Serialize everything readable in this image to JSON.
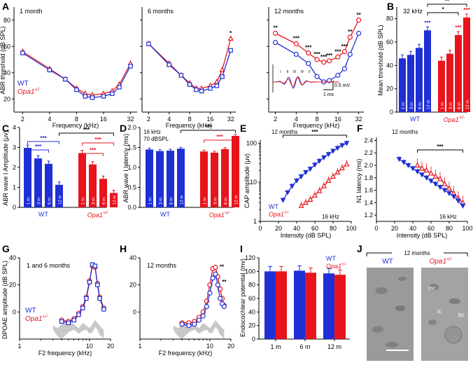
{
  "colors": {
    "wt": "#1f2fd6",
    "opa1": "#e8141c",
    "axis": "#000000",
    "gray": "#c8c8c8",
    "sig": "#000000"
  },
  "legend": {
    "wt": "WT",
    "opa1": "Opa1",
    "opa1_sup": "+/-"
  },
  "chart_data": [
    {
      "panel": "A",
      "type": "line",
      "subtitle": "1 month",
      "ylabel": "ABR threshold (dB SPL)",
      "xlabel": "Frequency (kHz)",
      "x_ticks": [
        "2",
        "4",
        "8",
        "16",
        "32"
      ],
      "y_ticks": [
        "20",
        "40",
        "60",
        "80"
      ],
      "ylim": [
        10,
        90
      ],
      "x": [
        2,
        4,
        6,
        8,
        10,
        12,
        16,
        20,
        24,
        32
      ],
      "series": [
        {
          "name": "WT",
          "values": [
            55,
            42,
            35,
            27,
            22,
            21,
            22,
            24,
            29,
            45
          ]
        },
        {
          "name": "Opa1+/-",
          "values": [
            56,
            43,
            35,
            28,
            24,
            23,
            24,
            26,
            31,
            47
          ]
        }
      ]
    },
    {
      "panel": "A",
      "type": "line",
      "subtitle": "6 months",
      "xlabel": "Frequency (kHz)",
      "x_ticks": [
        "2",
        "4",
        "8",
        "16",
        "32"
      ],
      "ylim": [
        10,
        90
      ],
      "x": [
        2,
        4,
        6,
        8,
        10,
        12,
        16,
        20,
        24,
        32
      ],
      "series": [
        {
          "name": "WT",
          "values": [
            62,
            46,
            38,
            31,
            27,
            26,
            28,
            30,
            37,
            57
          ]
        },
        {
          "name": "Opa1+/-",
          "values": [
            62,
            47,
            38,
            32,
            28,
            28,
            30,
            33,
            42,
            66
          ]
        }
      ],
      "significance": [
        {
          "x": 32,
          "label": "*"
        }
      ]
    },
    {
      "panel": "A",
      "type": "line",
      "subtitle": "12 months",
      "xlabel": "Frequency (kHz)",
      "x_ticks": [
        "2",
        "4",
        "8",
        "16",
        "32"
      ],
      "ylim": [
        10,
        90
      ],
      "x": [
        2,
        4,
        6,
        8,
        10,
        12,
        16,
        20,
        24,
        32
      ],
      "series": [
        {
          "name": "WT",
          "values": [
            63,
            54,
            47,
            37,
            33,
            34,
            38,
            43,
            54,
            70
          ]
        },
        {
          "name": "Opa1+/-",
          "values": [
            70,
            62,
            55,
            50,
            48,
            49,
            52,
            56,
            67,
            80
          ]
        }
      ],
      "significance": [
        {
          "x": 2,
          "label": "**"
        },
        {
          "x": 4,
          "label": "***"
        },
        {
          "x": 6,
          "label": "***"
        },
        {
          "x": 8,
          "label": "***"
        },
        {
          "x": 10,
          "label": "***"
        },
        {
          "x": 12,
          "label": "***"
        },
        {
          "x": 16,
          "label": "***"
        },
        {
          "x": 20,
          "label": "***"
        },
        {
          "x": 24,
          "label": "**"
        },
        {
          "x": 32,
          "label": "**"
        }
      ],
      "inset": {
        "peaks": [
          "I",
          "II",
          "III",
          "IV",
          "V"
        ],
        "scale_v": "0.5 mV",
        "scale_t": "1 ms"
      }
    },
    {
      "panel": "B",
      "type": "bar",
      "subtitle": "32 kHz",
      "ylabel": "Mean threshold (dB SPL)",
      "y_ticks": [
        "0",
        "20",
        "40",
        "60",
        "80"
      ],
      "ylim": [
        0,
        90
      ],
      "groups": [
        "WT",
        "Opa1+/-"
      ],
      "categories": [
        "1 m",
        "3 m",
        "6 m",
        "12 m"
      ],
      "series": [
        {
          "name": "WT",
          "values": [
            46,
            49,
            55,
            70
          ],
          "sig": [
            "",
            "",
            "",
            "***"
          ]
        },
        {
          "name": "Opa1+/-",
          "values": [
            44,
            50,
            66,
            81
          ],
          "sig": [
            "",
            "",
            "***",
            "***"
          ]
        }
      ],
      "brackets": [
        {
          "label": "*"
        },
        {
          "label": "**"
        }
      ]
    },
    {
      "panel": "C",
      "type": "bar",
      "ylabel": "ABR wave I Amplitude (μv)",
      "y_ticks": [
        "0",
        "1",
        "2",
        "3",
        "4"
      ],
      "ylim": [
        0,
        4
      ],
      "groups": [
        "WT",
        "Opa1+/-"
      ],
      "categories": [
        "1 m",
        "3 m",
        "6 m",
        "12 m"
      ],
      "series": [
        {
          "name": "WT",
          "values": [
            2.98,
            2.45,
            2.18,
            1.13
          ]
        },
        {
          "name": "Opa1+/-",
          "values": [
            2.72,
            2.15,
            1.43,
            0.72
          ]
        }
      ],
      "brackets": [
        {
          "label": "***"
        },
        {
          "label": "***"
        },
        {
          "label": "***"
        },
        {
          "label": "***"
        },
        {
          "label": "***"
        }
      ]
    },
    {
      "panel": "D",
      "type": "bar",
      "subtitle": "16 kHz",
      "subtitle2": "70 dBSPL",
      "ylabel": "ABR wave I latency (ms)",
      "y_ticks": [
        "0.0",
        "0.5",
        "1.0",
        "1.5",
        "2.0"
      ],
      "ylim": [
        0,
        2
      ],
      "groups": [
        "WT",
        "Opa1+/-"
      ],
      "categories": [
        "1 m",
        "3 m",
        "6 m",
        "12 m"
      ],
      "series": [
        {
          "name": "WT",
          "values": [
            1.45,
            1.41,
            1.42,
            1.47
          ]
        },
        {
          "name": "Opa1+/-",
          "values": [
            1.4,
            1.37,
            1.46,
            1.79
          ]
        }
      ],
      "brackets": [
        {
          "label": "***"
        },
        {
          "label": "***"
        }
      ]
    },
    {
      "panel": "E",
      "type": "line",
      "subtitle": "12 months",
      "freq": "16 kHz",
      "ylabel": "CAP amplitude (μv)",
      "xlabel": "Intensity (dB SPL)",
      "x_ticks": [
        "0",
        "20",
        "40",
        "60",
        "80",
        "100"
      ],
      "y_ticks": [
        "1",
        "10",
        "100"
      ],
      "yscale": "log",
      "xlim": [
        0,
        100
      ],
      "ylim": [
        1,
        120
      ],
      "series": [
        {
          "name": "WT",
          "x": [
            25,
            30,
            35,
            40,
            45,
            50,
            55,
            60,
            65,
            70,
            75,
            80,
            85,
            90,
            95
          ],
          "values": [
            3.5,
            5.5,
            8,
            11,
            14,
            18,
            22,
            28,
            35,
            43,
            52,
            63,
            75,
            88,
            100
          ]
        },
        {
          "name": "Opa1+/-",
          "x": [
            45,
            50,
            55,
            60,
            65,
            70,
            75,
            80,
            85,
            90,
            95
          ],
          "values": [
            2.5,
            3,
            3.6,
            4.6,
            6,
            8,
            11,
            14,
            18,
            23,
            29
          ]
        }
      ],
      "significance": [
        {
          "label": "***"
        }
      ],
      "legend": [
        "WT",
        "Opa1+/-"
      ]
    },
    {
      "panel": "F",
      "type": "line",
      "subtitle": "12 months",
      "freq": "16 kHz",
      "ylabel": "N1 latency (ms)",
      "xlabel": "Intensity (dB SPL)",
      "x_ticks": [
        "0",
        "20",
        "40",
        "60",
        "80",
        "100"
      ],
      "y_ticks": [
        "1.2",
        "1.4",
        "1.6",
        "1.8",
        "2.0",
        "2.2",
        "2.4"
      ],
      "xlim": [
        0,
        100
      ],
      "ylim": [
        1.1,
        2.45
      ],
      "series": [
        {
          "name": "WT",
          "x": [
            25,
            30,
            35,
            40,
            45,
            50,
            55,
            60,
            65,
            70,
            75,
            80,
            85,
            90,
            95
          ],
          "values": [
            2.1,
            2.05,
            2.0,
            1.95,
            1.9,
            1.85,
            1.8,
            1.75,
            1.7,
            1.65,
            1.6,
            1.55,
            1.5,
            1.43,
            1.35
          ]
        },
        {
          "name": "Opa1+/-",
          "x": [
            45,
            50,
            55,
            60,
            65,
            70,
            75,
            80,
            85,
            90,
            95
          ],
          "values": [
            2.0,
            1.95,
            1.92,
            1.87,
            1.82,
            1.78,
            1.7,
            1.63,
            1.55,
            1.47,
            1.4
          ]
        }
      ],
      "significance": [
        {
          "label": "***"
        }
      ]
    },
    {
      "panel": "G",
      "type": "line",
      "subtitle": "1 and 6 months",
      "ylabel": "DPOAE amplitude (dB SPL)",
      "xlabel": "F2 frequency (kHz)",
      "x_ticks": [
        "1",
        "10",
        "20"
      ],
      "y_ticks": [
        "0",
        "20",
        "40"
      ],
      "xlim": [
        1,
        20
      ],
      "ylim": [
        -20,
        40
      ],
      "x": [
        4,
        5,
        6,
        7,
        8,
        9,
        10,
        11,
        12,
        13,
        14,
        16
      ],
      "series": [
        {
          "name": "WT",
          "values": [
            -7,
            -8,
            -6,
            -2,
            3,
            10,
            22,
            35,
            34,
            20,
            10,
            2
          ]
        },
        {
          "name": "Opa1+/-",
          "values": [
            -6,
            -7,
            -5,
            -1,
            4,
            11,
            23,
            34,
            33,
            21,
            11,
            3
          ]
        }
      ],
      "legend": [
        "WT",
        "Opa1+/-"
      ]
    },
    {
      "panel": "H",
      "type": "line",
      "subtitle": "12 months",
      "xlabel": "F2 frequency (kHz)",
      "x_ticks": [
        "1",
        "10",
        "20"
      ],
      "y_ticks": [
        "0",
        "20",
        "40"
      ],
      "xlim": [
        1,
        20
      ],
      "ylim": [
        -20,
        40
      ],
      "x": [
        4,
        5,
        6,
        7,
        8,
        9,
        10,
        11,
        12,
        13,
        14,
        15,
        16
      ],
      "series": [
        {
          "name": "WT",
          "values": [
            -9,
            -10,
            -9,
            -6,
            -3,
            4,
            14,
            25,
            28,
            20,
            10,
            6,
            4
          ]
        },
        {
          "name": "Opa1+/-",
          "values": [
            -8,
            -8,
            -7,
            -4,
            0,
            8,
            20,
            32,
            33,
            26,
            17,
            10,
            5
          ]
        }
      ],
      "significance": [
        {
          "x": 12,
          "label": "**"
        },
        {
          "x": 13,
          "label": "**"
        }
      ]
    },
    {
      "panel": "I",
      "type": "bar",
      "ylabel": "Endocochlear potential (mv)",
      "y_ticks": [
        "0",
        "20",
        "40",
        "60",
        "80",
        "100",
        "120"
      ],
      "ylim": [
        0,
        120
      ],
      "categories": [
        "1 m",
        "6 m",
        "12 m"
      ],
      "series": [
        {
          "name": "WT",
          "values": [
            100,
            101,
            97
          ]
        },
        {
          "name": "Opa1+/-",
          "values": [
            100,
            98,
            95
          ]
        }
      ],
      "legend": [
        "WT",
        "Opa1+/-"
      ]
    }
  ],
  "panel_j": {
    "title": "12 months",
    "left_label": "WT",
    "right_label": "Opa1",
    "right_sup": "+/-",
    "labels": [
      "mc",
      "ic",
      "bc"
    ]
  },
  "panel_letters": [
    "A",
    "B",
    "C",
    "D",
    "E",
    "F",
    "G",
    "H",
    "I",
    "J"
  ]
}
